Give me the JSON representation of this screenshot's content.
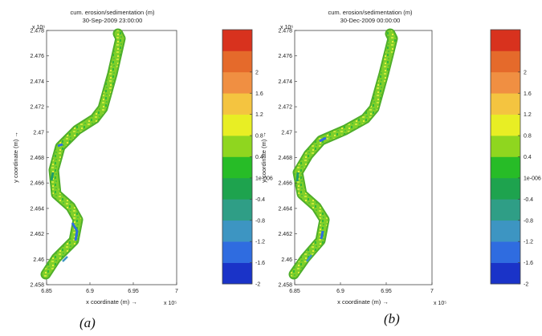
{
  "panels": [
    {
      "id": "a",
      "title": "cum. erosion/sedimentation (m)",
      "subtitle": "30-Sep-2009 23:00:00",
      "caption": "(a)"
    },
    {
      "id": "b",
      "title": "cum. erosion/sedimentation (m)",
      "subtitle": "30-Dec-2009 00:00:00",
      "caption": "(b)"
    }
  ],
  "chart_data": [
    {
      "type": "heatmap",
      "title": "cum. erosion/sedimentation (m)",
      "subtitle": "30-Sep-2009 23:00:00",
      "xlabel": "x coordinate (m) →",
      "ylabel": "y coordinate (m) →",
      "x_exponent_label": "x 10⁵",
      "y_exponent_label": "x 10⁶",
      "xlim": [
        6.85,
        7.0
      ],
      "ylim": [
        2.458,
        2.478
      ],
      "x_ticks": [
        "6.85",
        "6.9",
        "6.95",
        "7"
      ],
      "y_ticks": [
        "2.458",
        "2.46",
        "2.462",
        "2.464",
        "2.466",
        "2.468",
        "2.47",
        "2.472",
        "2.474",
        "2.476",
        "2.478"
      ],
      "colorbar_ticks": [
        "-2",
        "-1.6",
        "-1.2",
        "-0.8",
        "-0.4",
        "1e-006",
        "0.4",
        "0.8",
        "1.2",
        "1.6",
        "2"
      ],
      "colorbar_range": [
        -2,
        2.4
      ],
      "colorbar_colors": [
        "#1a33c8",
        "#2f6ce0",
        "#3d95c2",
        "#2f9e86",
        "#1ea34e",
        "#27bc27",
        "#8fd61f",
        "#e8ee24",
        "#f4c440",
        "#f08f42",
        "#e56a2b",
        "#d8321e"
      ],
      "dominant_value_range": [
        0,
        0.4
      ]
    },
    {
      "type": "heatmap",
      "title": "cum. erosion/sedimentation (m)",
      "subtitle": "30-Dec-2009 00:00:00",
      "xlabel": "x coordinate (m) →",
      "ylabel": "y coordinate (m) →",
      "x_exponent_label": "x 10⁵",
      "y_exponent_label": "x 10⁶",
      "xlim": [
        6.85,
        7.0
      ],
      "ylim": [
        2.458,
        2.478
      ],
      "x_ticks": [
        "6.85",
        "6.9",
        "6.95",
        "7"
      ],
      "y_ticks": [
        "2.458",
        "2.46",
        "2.462",
        "2.464",
        "2.466",
        "2.468",
        "2.47",
        "2.472",
        "2.474",
        "2.476",
        "2.478"
      ],
      "colorbar_ticks": [
        "-2",
        "-1.6",
        "-1.2",
        "-0.8",
        "-0.4",
        "1e-006",
        "0.4",
        "0.8",
        "1.2",
        "1.6",
        "2"
      ],
      "colorbar_range": [
        -2,
        2.4
      ],
      "colorbar_colors": [
        "#1a33c8",
        "#2f6ce0",
        "#3d95c2",
        "#2f9e86",
        "#1ea34e",
        "#27bc27",
        "#8fd61f",
        "#e8ee24",
        "#f4c440",
        "#f08f42",
        "#e56a2b",
        "#d8321e"
      ],
      "dominant_value_range": [
        0,
        0.4
      ]
    }
  ]
}
